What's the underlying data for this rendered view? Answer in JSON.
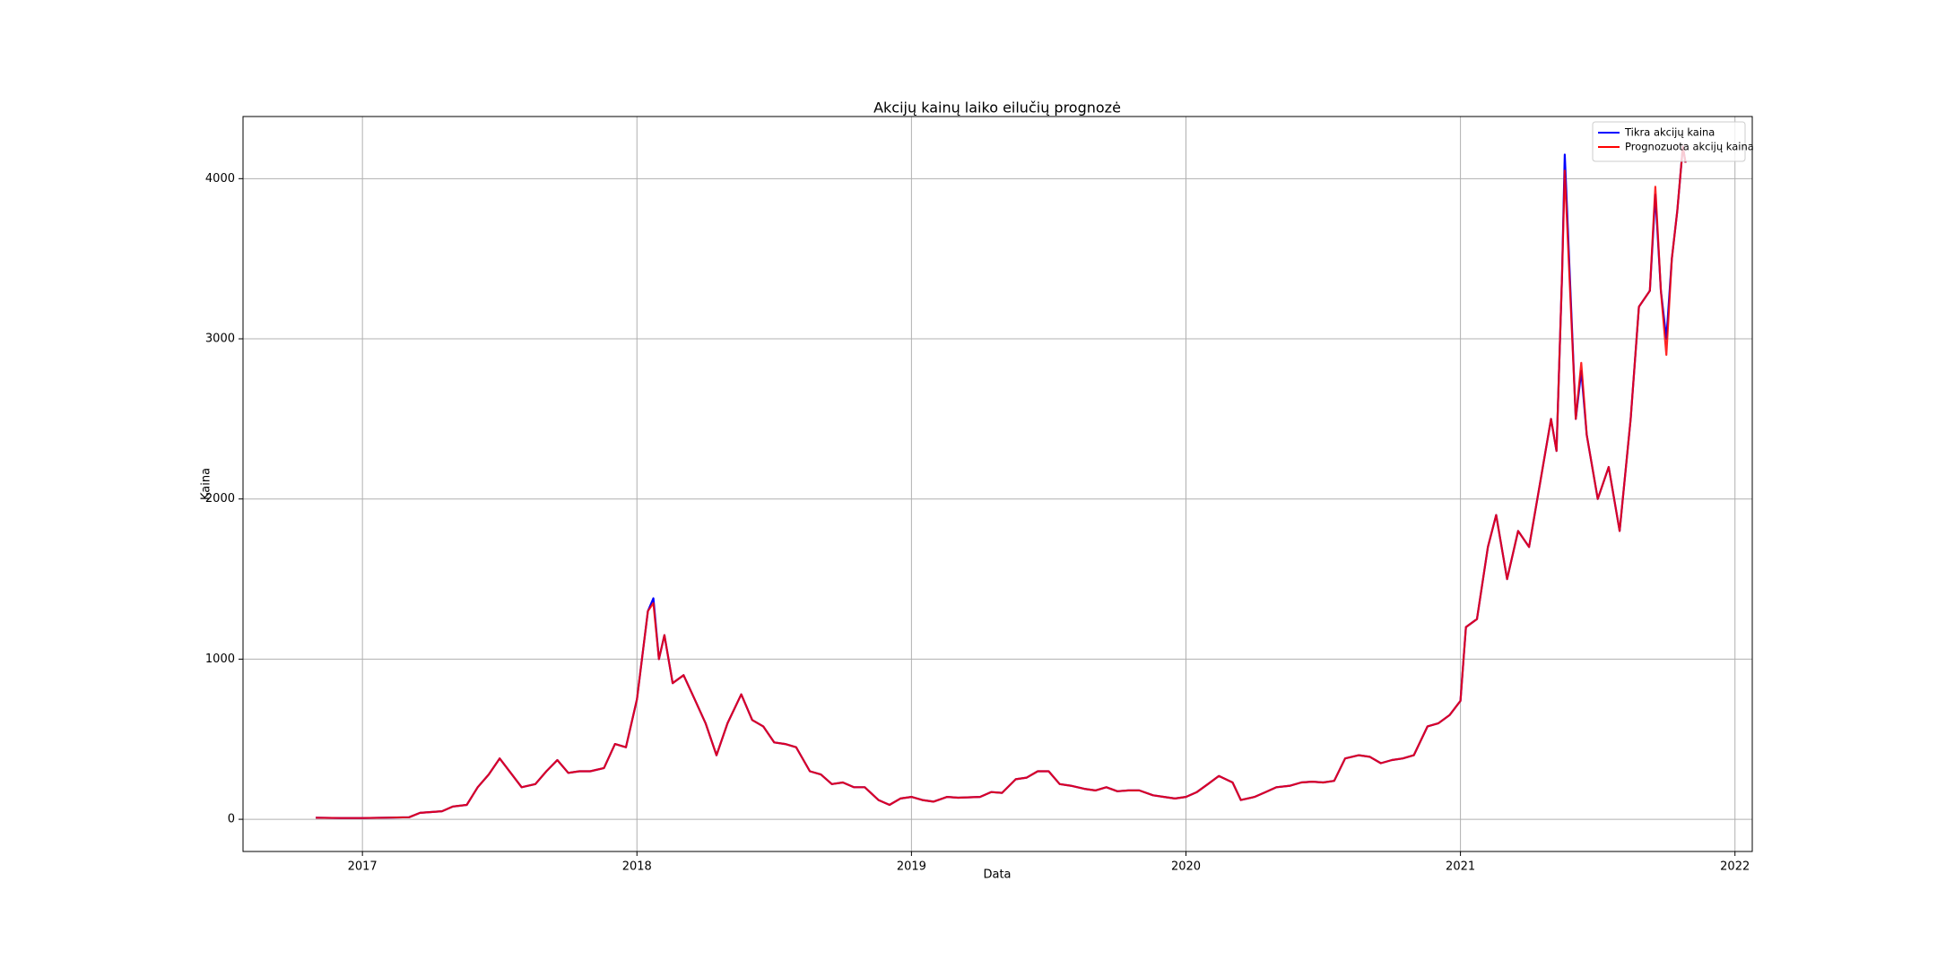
{
  "chart_data": {
    "type": "line",
    "title": "Akcijų kainų laiko eilučių prognozė",
    "xlabel": "Data",
    "ylabel": "Kaina",
    "x": [
      2016.83,
      2016.92,
      2017.0,
      2017.08,
      2017.17,
      2017.21,
      2017.29,
      2017.33,
      2017.38,
      2017.42,
      2017.46,
      2017.5,
      2017.54,
      2017.58,
      2017.63,
      2017.67,
      2017.71,
      2017.75,
      2017.79,
      2017.83,
      2017.88,
      2017.92,
      2017.96,
      2018.0,
      2018.04,
      2018.06,
      2018.08,
      2018.1,
      2018.13,
      2018.17,
      2018.21,
      2018.25,
      2018.29,
      2018.33,
      2018.38,
      2018.42,
      2018.46,
      2018.5,
      2018.54,
      2018.58,
      2018.63,
      2018.67,
      2018.71,
      2018.75,
      2018.79,
      2018.83,
      2018.88,
      2018.92,
      2018.96,
      2019.0,
      2019.04,
      2019.08,
      2019.13,
      2019.17,
      2019.25,
      2019.29,
      2019.33,
      2019.38,
      2019.42,
      2019.46,
      2019.5,
      2019.54,
      2019.58,
      2019.63,
      2019.67,
      2019.71,
      2019.75,
      2019.79,
      2019.83,
      2019.88,
      2019.92,
      2019.96,
      2020.0,
      2020.04,
      2020.08,
      2020.12,
      2020.17,
      2020.2,
      2020.25,
      2020.29,
      2020.33,
      2020.38,
      2020.42,
      2020.46,
      2020.5,
      2020.54,
      2020.58,
      2020.63,
      2020.67,
      2020.71,
      2020.75,
      2020.79,
      2020.83,
      2020.88,
      2020.92,
      2020.96,
      2021.0,
      2021.02,
      2021.06,
      2021.1,
      2021.13,
      2021.17,
      2021.21,
      2021.25,
      2021.29,
      2021.33,
      2021.35,
      2021.37,
      2021.38,
      2021.42,
      2021.44,
      2021.46,
      2021.5,
      2021.54,
      2021.58,
      2021.62,
      2021.65,
      2021.69,
      2021.71,
      2021.73,
      2021.75,
      2021.77,
      2021.79,
      2021.81,
      2021.82
    ],
    "series": [
      {
        "name": "Tikra akcijų kaina",
        "color": "#0000ff",
        "values": [
          10,
          8,
          8,
          10,
          13,
          40,
          50,
          80,
          90,
          200,
          280,
          380,
          290,
          200,
          220,
          300,
          370,
          290,
          300,
          300,
          320,
          470,
          450,
          750,
          1300,
          1380,
          1000,
          1150,
          850,
          900,
          750,
          600,
          400,
          600,
          780,
          620,
          580,
          480,
          470,
          450,
          300,
          280,
          220,
          230,
          200,
          200,
          120,
          90,
          130,
          140,
          120,
          110,
          140,
          135,
          140,
          170,
          165,
          250,
          260,
          300,
          300,
          220,
          210,
          190,
          180,
          200,
          175,
          180,
          180,
          150,
          140,
          130,
          140,
          170,
          220,
          270,
          230,
          120,
          140,
          170,
          200,
          210,
          230,
          235,
          230,
          240,
          380,
          400,
          390,
          350,
          370,
          380,
          400,
          580,
          600,
          650,
          740,
          1200,
          1250,
          1700,
          1900,
          1500,
          1800,
          1700,
          2100,
          2500,
          2300,
          3400,
          4150,
          2500,
          2800,
          2400,
          2000,
          2200,
          1800,
          2500,
          3200,
          3300,
          3900,
          3300,
          3000,
          3500,
          3800,
          4200,
          4100
        ]
      },
      {
        "name": "Prognozuota akcijų kaina",
        "color": "#ff0000",
        "values": [
          10,
          8,
          8,
          10,
          13,
          40,
          50,
          80,
          90,
          200,
          280,
          380,
          290,
          200,
          220,
          300,
          370,
          290,
          300,
          300,
          320,
          470,
          450,
          750,
          1300,
          1350,
          1000,
          1150,
          850,
          900,
          750,
          600,
          400,
          600,
          780,
          620,
          580,
          480,
          470,
          450,
          300,
          280,
          220,
          230,
          200,
          200,
          120,
          90,
          130,
          140,
          120,
          110,
          140,
          135,
          140,
          170,
          165,
          250,
          260,
          300,
          300,
          220,
          210,
          190,
          180,
          200,
          175,
          180,
          180,
          150,
          140,
          130,
          140,
          170,
          220,
          270,
          230,
          120,
          140,
          170,
          200,
          210,
          230,
          235,
          230,
          240,
          380,
          400,
          390,
          350,
          370,
          380,
          400,
          580,
          600,
          650,
          740,
          1200,
          1250,
          1700,
          1900,
          1500,
          1800,
          1700,
          2100,
          2500,
          2300,
          3400,
          4050,
          2500,
          2850,
          2400,
          2000,
          2200,
          1800,
          2500,
          3200,
          3300,
          3950,
          3300,
          2900,
          3500,
          3800,
          4200,
          4100
        ]
      }
    ],
    "xlim": [
      2016.565,
      2022.063
    ],
    "xticks": [
      2017,
      2018,
      2019,
      2020,
      2021,
      2022
    ],
    "ylim": [
      -201,
      4388
    ],
    "yticks": [
      0,
      1000,
      2000,
      3000,
      4000
    ],
    "grid": true,
    "legend": "upper right"
  }
}
